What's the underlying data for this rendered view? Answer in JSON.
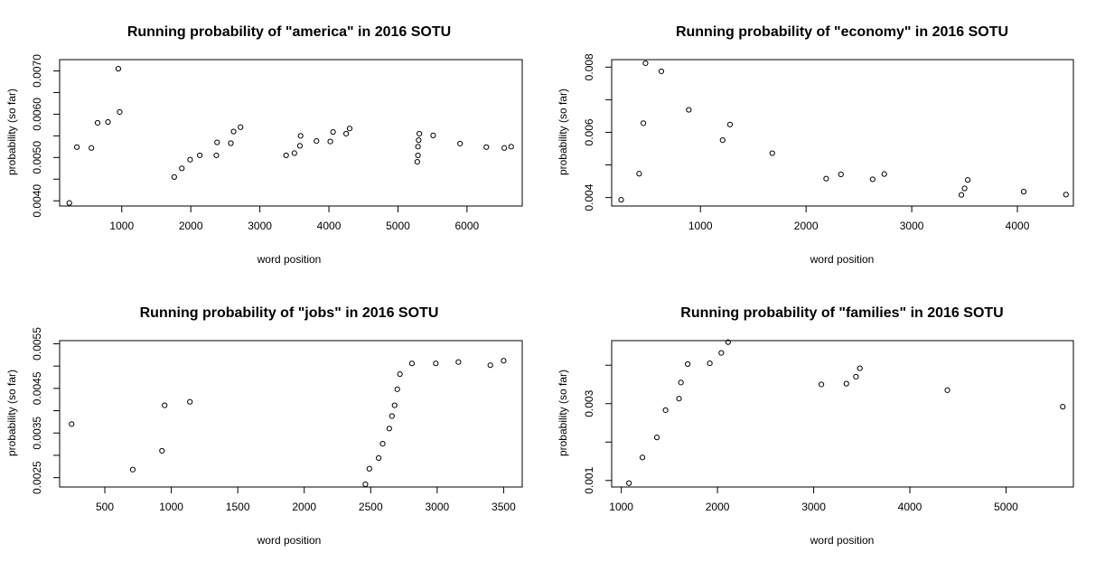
{
  "chart_data": [
    {
      "type": "scatter",
      "title": "Running probability of \"america\" in 2016 SOTU",
      "xlabel": "word position",
      "ylabel": "probability (so far)",
      "xlim": [
        100,
        6800
      ],
      "ylim": [
        0.00388,
        0.00726
      ],
      "xticks": [
        1000,
        2000,
        3000,
        4000,
        5000,
        6000
      ],
      "xtick_labels": [
        "1000",
        "2000",
        "3000",
        "4000",
        "5000",
        "6000"
      ],
      "yticks": [
        0.004,
        0.0045,
        0.005,
        0.0055,
        0.006,
        0.0065,
        0.007
      ],
      "ytick_labels": [
        "0.0040",
        "",
        "0.0050",
        "",
        "0.0060",
        "",
        "0.0070"
      ],
      "x": [
        240,
        350,
        560,
        650,
        800,
        950,
        970,
        1760,
        1870,
        1990,
        2130,
        2370,
        2380,
        2580,
        2620,
        2720,
        3380,
        3500,
        3580,
        3590,
        3820,
        4020,
        4060,
        4250,
        4300,
        5280,
        5290,
        5290,
        5300,
        5310,
        5510,
        5900,
        6280,
        6540,
        6640
      ],
      "y": [
        0.00395,
        0.00524,
        0.00522,
        0.0058,
        0.00582,
        0.00705,
        0.00605,
        0.00455,
        0.00475,
        0.00495,
        0.00505,
        0.00505,
        0.00535,
        0.00533,
        0.0056,
        0.0057,
        0.00505,
        0.0051,
        0.00527,
        0.0055,
        0.00538,
        0.00537,
        0.00559,
        0.00555,
        0.00567,
        0.0049,
        0.00505,
        0.00525,
        0.0054,
        0.00555,
        0.00551,
        0.00532,
        0.00524,
        0.00522,
        0.00525
      ]
    },
    {
      "type": "scatter",
      "title": "Running probability of \"economy\" in 2016 SOTU",
      "xlabel": "word position",
      "ylabel": "probability (so far)",
      "xlim": [
        160,
        4530
      ],
      "ylim": [
        0.00374,
        0.00823
      ],
      "xticks": [
        1000,
        2000,
        3000,
        4000
      ],
      "xtick_labels": [
        "1000",
        "2000",
        "3000",
        "4000"
      ],
      "yticks": [
        0.004,
        0.005,
        0.006,
        0.007,
        0.008
      ],
      "ytick_labels": [
        "0.004",
        "",
        "0.006",
        "",
        "0.008"
      ],
      "x": [
        250,
        420,
        460,
        480,
        630,
        890,
        1210,
        1280,
        1680,
        2190,
        2330,
        2630,
        2740,
        3470,
        3500,
        3530,
        4060,
        4460
      ],
      "y": [
        0.00393,
        0.00473,
        0.00628,
        0.00812,
        0.00787,
        0.00669,
        0.00576,
        0.00624,
        0.00536,
        0.00458,
        0.00471,
        0.00456,
        0.00472,
        0.00408,
        0.00428,
        0.00454,
        0.00418,
        0.00409
      ]
    },
    {
      "type": "scatter",
      "title": "Running probability of \"jobs\" in 2016 SOTU",
      "xlabel": "word position",
      "ylabel": "probability (so far)",
      "xlim": [
        160,
        3640
      ],
      "ylim": [
        0.00229,
        0.00557
      ],
      "xticks": [
        500,
        1000,
        1500,
        2000,
        2500,
        3000,
        3500
      ],
      "xtick_labels": [
        "500",
        "1000",
        "1500",
        "2000",
        "2500",
        "3000",
        "3500"
      ],
      "yticks": [
        0.0025,
        0.003,
        0.0035,
        0.004,
        0.0045,
        0.005,
        0.0055
      ],
      "ytick_labels": [
        "0.0025",
        "",
        "0.0035",
        "",
        "0.0045",
        "",
        "0.0055"
      ],
      "x": [
        250,
        710,
        930,
        950,
        1140,
        2460,
        2490,
        2560,
        2590,
        2640,
        2660,
        2680,
        2700,
        2720,
        2810,
        2990,
        3160,
        3400,
        3500
      ],
      "y": [
        0.0037,
        0.00268,
        0.0031,
        0.00412,
        0.0042,
        0.00235,
        0.0027,
        0.00294,
        0.00326,
        0.0036,
        0.00388,
        0.00412,
        0.00448,
        0.00482,
        0.00506,
        0.00506,
        0.00509,
        0.00502,
        0.00512
      ]
    },
    {
      "type": "scatter",
      "title": "Running probability of \"families\" in 2016 SOTU",
      "xlabel": "word position",
      "ylabel": "probability (so far)",
      "xlim": [
        900,
        5700
      ],
      "ylim": [
        0.00083,
        0.00464
      ],
      "xticks": [
        1000,
        2000,
        3000,
        4000,
        5000
      ],
      "xtick_labels": [
        "1000",
        "2000",
        "3000",
        "4000",
        "5000"
      ],
      "yticks": [
        0.001,
        0.002,
        0.003,
        0.004
      ],
      "ytick_labels": [
        "0.001",
        "",
        "0.003",
        ""
      ],
      "x": [
        1080,
        1220,
        1370,
        1460,
        1600,
        1620,
        1690,
        1920,
        2040,
        2110,
        3080,
        3340,
        3440,
        3480,
        4390,
        5590
      ],
      "y": [
        0.00093,
        0.0016,
        0.00212,
        0.00283,
        0.00313,
        0.00355,
        0.00403,
        0.00405,
        0.00432,
        0.0046,
        0.0035,
        0.00352,
        0.0037,
        0.00392,
        0.00335,
        0.00292
      ]
    }
  ]
}
